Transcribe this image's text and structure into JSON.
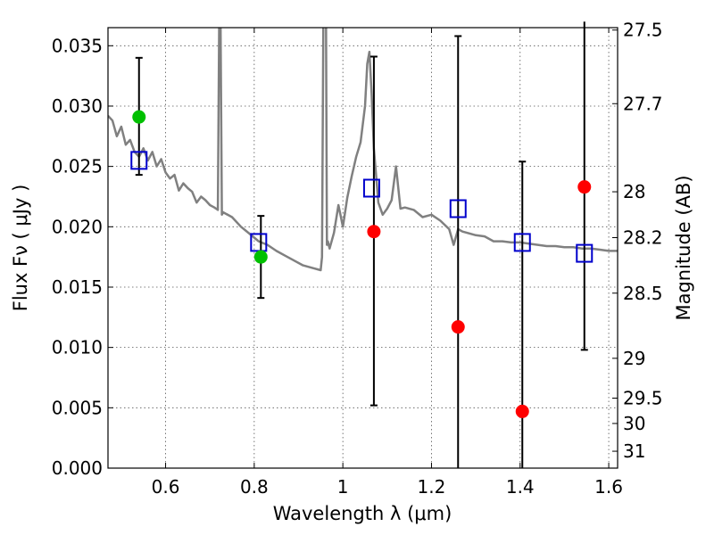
{
  "chart_data": {
    "type": "scatter",
    "xlabel": "Wavelength  λ (μm)",
    "ylabel": "Flux  Fν  ( μJy )",
    "y2label": "Magnitude (AB)",
    "xlim": [
      0.47,
      1.62
    ],
    "ylim": [
      0.0,
      0.0365
    ],
    "grid": true,
    "xticks": [
      0.6,
      0.8,
      1.0,
      1.2,
      1.4,
      1.6
    ],
    "xtick_labels": [
      "0.6",
      "0.8",
      "1",
      "1.2",
      "1.4",
      "1.6"
    ],
    "yticks": [
      0.0,
      0.005,
      0.01,
      0.015,
      0.02,
      0.025,
      0.03,
      0.035
    ],
    "ytick_labels": [
      "0.000",
      "0.005",
      "0.010",
      "0.015",
      "0.020",
      "0.025",
      "0.030",
      "0.035"
    ],
    "mag_ticks": [
      {
        "label": "27.5",
        "flux": 0.0363
      },
      {
        "label": "27.7",
        "flux": 0.0302
      },
      {
        "label": "28",
        "flux": 0.0229
      },
      {
        "label": "28.2",
        "flux": 0.0191
      },
      {
        "label": "28.5",
        "flux": 0.0145
      },
      {
        "label": "29",
        "flux": 0.0091
      },
      {
        "label": "29.5",
        "flux": 0.0058
      },
      {
        "label": "30",
        "flux": 0.0037
      },
      {
        "label": "31",
        "flux": 0.0014
      }
    ],
    "colors": {
      "model": "#808080",
      "detection": "#00c000",
      "upper": "#ff0000",
      "synthetic": "#0000cc",
      "errorbar": "#000000"
    },
    "series": [
      {
        "name": "template_sed",
        "style": "line",
        "color": "#808080",
        "x": [
          0.47,
          0.48,
          0.49,
          0.5,
          0.51,
          0.52,
          0.53,
          0.54,
          0.55,
          0.56,
          0.57,
          0.58,
          0.59,
          0.6,
          0.61,
          0.62,
          0.63,
          0.64,
          0.65,
          0.66,
          0.67,
          0.68,
          0.69,
          0.7,
          0.71,
          0.718,
          0.721,
          0.724,
          0.727,
          0.73,
          0.75,
          0.77,
          0.79,
          0.81,
          0.83,
          0.85,
          0.87,
          0.89,
          0.91,
          0.93,
          0.95,
          0.953,
          0.956,
          0.958,
          0.96,
          0.962,
          0.964,
          0.966,
          0.97,
          0.98,
          0.99,
          1.0,
          1.01,
          1.02,
          1.03,
          1.04,
          1.05,
          1.055,
          1.06,
          1.065,
          1.07,
          1.08,
          1.09,
          1.1,
          1.11,
          1.12,
          1.13,
          1.14,
          1.16,
          1.18,
          1.2,
          1.22,
          1.24,
          1.25,
          1.26,
          1.27,
          1.28,
          1.3,
          1.32,
          1.34,
          1.36,
          1.38,
          1.4,
          1.42,
          1.44,
          1.46,
          1.48,
          1.5,
          1.52,
          1.54,
          1.56,
          1.58,
          1.6,
          1.62
        ],
        "y": [
          0.0292,
          0.0288,
          0.0275,
          0.0283,
          0.0268,
          0.0272,
          0.0262,
          0.0258,
          0.0265,
          0.0255,
          0.0262,
          0.025,
          0.0256,
          0.0245,
          0.024,
          0.0243,
          0.023,
          0.0236,
          0.0232,
          0.0229,
          0.022,
          0.0225,
          0.0222,
          0.0218,
          0.0216,
          0.0214,
          0.037,
          0.037,
          0.021,
          0.0212,
          0.0208,
          0.02,
          0.0194,
          0.0188,
          0.0185,
          0.018,
          0.0176,
          0.0172,
          0.0168,
          0.0166,
          0.0164,
          0.0175,
          0.037,
          0.037,
          0.037,
          0.037,
          0.0185,
          0.0188,
          0.0182,
          0.0195,
          0.0218,
          0.02,
          0.0224,
          0.0242,
          0.0258,
          0.027,
          0.03,
          0.0335,
          0.0345,
          0.031,
          0.0265,
          0.022,
          0.021,
          0.0215,
          0.0222,
          0.025,
          0.0215,
          0.0216,
          0.0214,
          0.0208,
          0.021,
          0.0205,
          0.0198,
          0.0185,
          0.0198,
          0.0196,
          0.0195,
          0.0193,
          0.0192,
          0.0188,
          0.0188,
          0.0187,
          0.0187,
          0.0186,
          0.0185,
          0.0184,
          0.0184,
          0.0183,
          0.0183,
          0.0182,
          0.0182,
          0.0181,
          0.018,
          0.018
        ]
      },
      {
        "name": "synthetic_photometry",
        "style": "open_square",
        "color": "#0000cc",
        "x": [
          0.54,
          0.81,
          1.065,
          1.26,
          1.405,
          1.545
        ],
        "y": [
          0.0255,
          0.0187,
          0.0232,
          0.0215,
          0.0187,
          0.0178
        ]
      },
      {
        "name": "detections",
        "style": "filled_circle",
        "color": "#00c000",
        "x": [
          0.54,
          0.815
        ],
        "y": [
          0.0291,
          0.0175
        ]
      },
      {
        "name": "non_detections",
        "style": "filled_circle",
        "color": "#ff0000",
        "x": [
          1.07,
          1.26,
          1.405,
          1.545
        ],
        "y": [
          0.0196,
          0.0117,
          0.0047,
          0.0233
        ]
      },
      {
        "name": "error_bars",
        "style": "errorbar",
        "color": "#000000",
        "x": [
          0.54,
          0.815,
          1.07,
          1.26,
          1.405,
          1.545
        ],
        "low": [
          0.0243,
          0.0141,
          0.0052,
          0.0,
          0.0,
          0.0098
        ],
        "high": [
          0.034,
          0.0209,
          0.0341,
          0.0358,
          0.0254,
          0.037
        ]
      }
    ]
  }
}
